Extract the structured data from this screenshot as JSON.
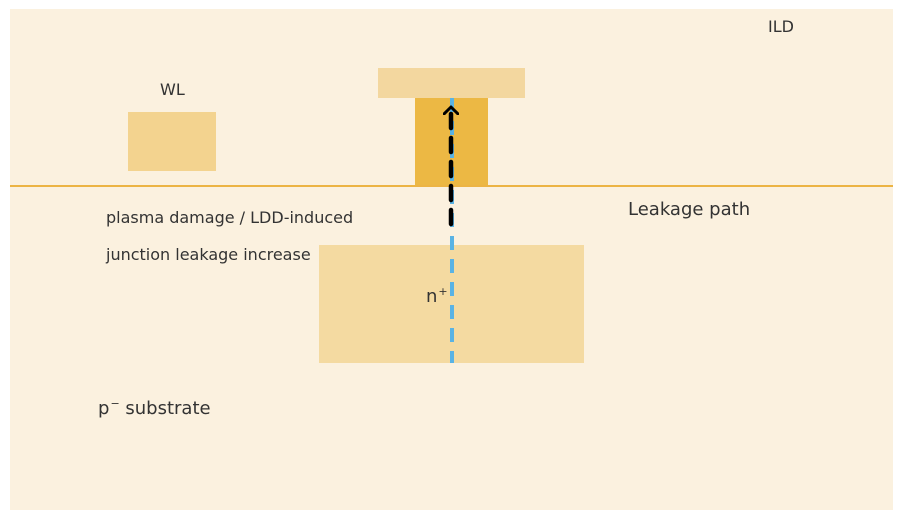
{
  "labels": {
    "ild": "ILD",
    "wl": "WL",
    "leakage_path": "Leakage path",
    "annotation_line1": "plasma damage / LDD-induced",
    "annotation_line2": "junction leakage increase",
    "n_plus_base": "n",
    "n_plus_sup": "+",
    "substrate_prefix": "p",
    "substrate_sup": "−",
    "substrate_suffix": " substrate"
  },
  "colors": {
    "substrate": "#fbf1df",
    "surface_line": "#ecb444",
    "wl_block": "#f3d38f",
    "contact_pad": "#f3d79f",
    "contact_plug": "#ecb844",
    "n_plus_region": "#f4daa1",
    "leakage_dash_blue": "#5ab3e4",
    "leakage_arrow": "#000000",
    "text": "#333333"
  }
}
